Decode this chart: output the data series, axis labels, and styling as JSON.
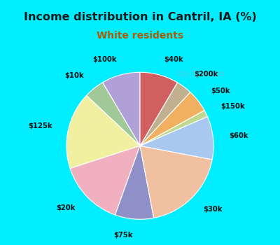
{
  "title": "Income distribution in Cantril, IA (%)",
  "subtitle": "White residents",
  "title_color": "#1a1a1a",
  "subtitle_color": "#b05a00",
  "background_cyan": "#00eeff",
  "background_chart": "#e0f0e8",
  "labels": [
    "$100k",
    "$10k",
    "$125k",
    "$20k",
    "$75k",
    "$30k",
    "$60k",
    "$150k",
    "$50k",
    "$200k",
    "$40k"
  ],
  "values": [
    8.5,
    4.5,
    17.0,
    14.5,
    8.5,
    19.0,
    9.5,
    1.5,
    5.0,
    3.5,
    8.5
  ],
  "colors": [
    "#b0a0d8",
    "#a0c898",
    "#f0f0a0",
    "#f0b0c0",
    "#9090c8",
    "#f0c0a0",
    "#a8c8f0",
    "#c0d890",
    "#f0b060",
    "#c0b090",
    "#d06060"
  ],
  "startangle": 90,
  "label_distance": 1.22,
  "watermark": "City-Data.com"
}
